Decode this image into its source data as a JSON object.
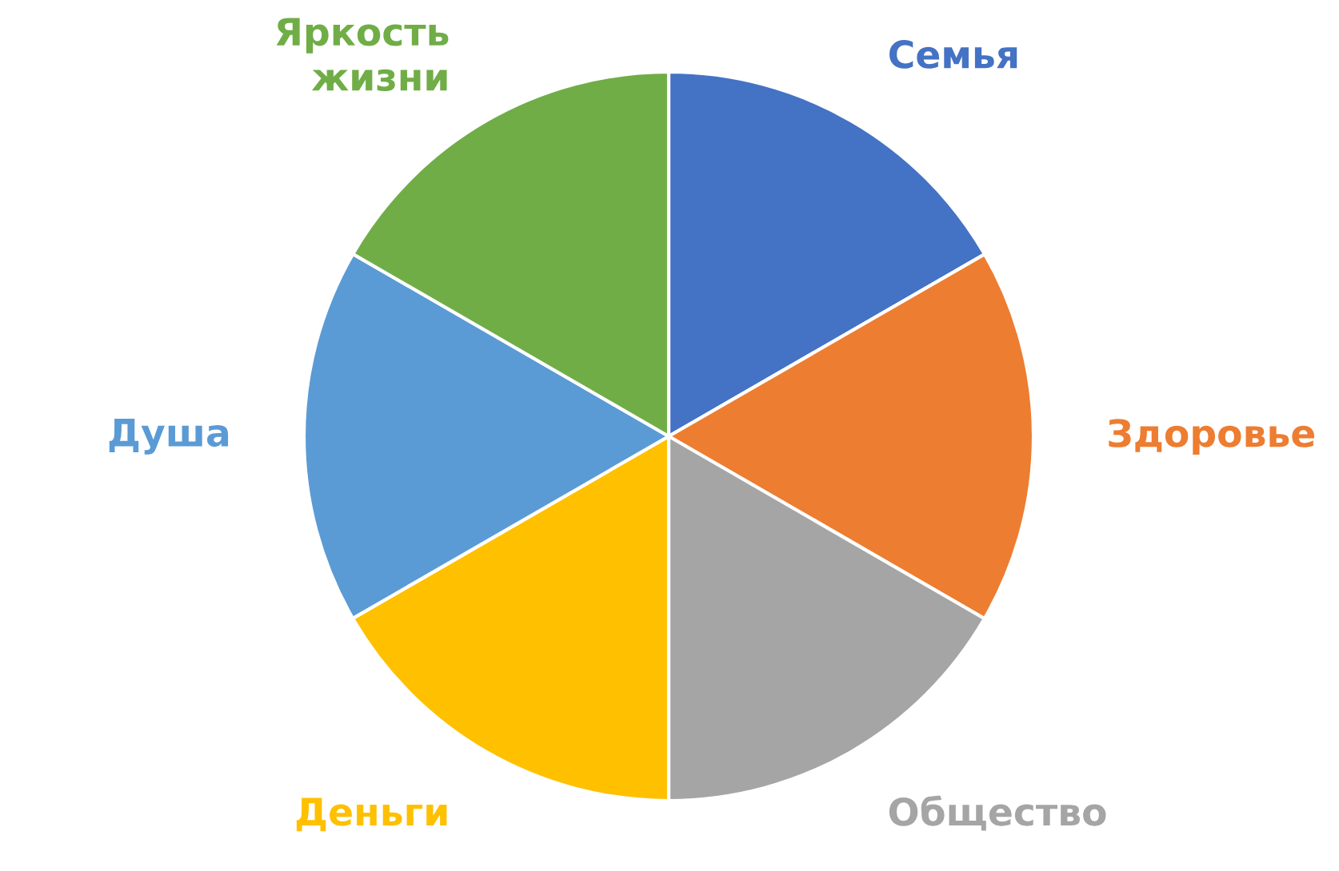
{
  "chart_data": {
    "type": "pie",
    "categories": [
      "Семья",
      "Здоровье",
      "Общество",
      "Деньги",
      "Душа",
      "Яркость\nжизни"
    ],
    "values": [
      16.67,
      16.67,
      16.66,
      16.67,
      16.67,
      16.66
    ],
    "colors": [
      "#4472c4",
      "#ed7d31",
      "#a5a5a5",
      "#ffc000",
      "#5b9bd5",
      "#70ad47"
    ],
    "legend": false
  }
}
